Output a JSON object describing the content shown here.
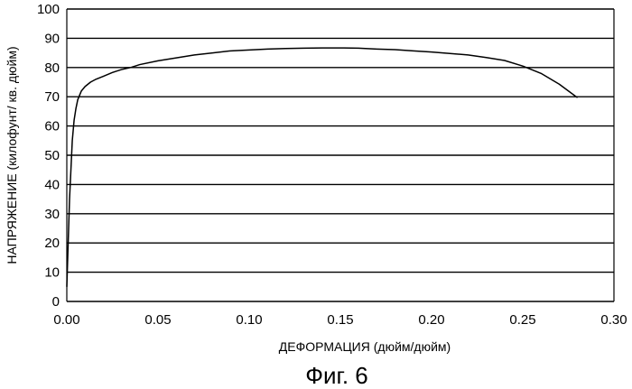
{
  "figure_label": "Фиг. 6",
  "chart_data": {
    "type": "line",
    "title": "",
    "xlabel": "ДЕФОРМАЦИЯ (дюйм/дюйм)",
    "ylabel": "НАПРЯЖЕНИЕ (килофунт/ кв. дюйм)",
    "xlim": [
      0,
      0.3
    ],
    "ylim": [
      0,
      100
    ],
    "x_ticks": [
      "0.00",
      "0.05",
      "0.10",
      "0.15",
      "0.20",
      "0.25",
      "0.30"
    ],
    "y_ticks": [
      "0",
      "10",
      "20",
      "30",
      "40",
      "50",
      "60",
      "70",
      "80",
      "90",
      "100"
    ],
    "grid": "horizontal",
    "legend": "none",
    "series": [
      {
        "color": "#000000",
        "x": [
          0.0,
          0.0015,
          0.003,
          0.004,
          0.005,
          0.006,
          0.008,
          0.01,
          0.013,
          0.016,
          0.02,
          0.025,
          0.03,
          0.035,
          0.04,
          0.05,
          0.06,
          0.07,
          0.08,
          0.09,
          0.1,
          0.11,
          0.12,
          0.13,
          0.14,
          0.15,
          0.16,
          0.17,
          0.18,
          0.19,
          0.2,
          0.21,
          0.22,
          0.23,
          0.24,
          0.25,
          0.26,
          0.27,
          0.275,
          0.28
        ],
        "y": [
          5,
          35,
          55,
          62,
          66,
          69,
          72,
          73.5,
          75,
          76,
          77,
          78.3,
          79.3,
          80,
          81,
          82.3,
          83.3,
          84.3,
          85,
          85.7,
          86,
          86.3,
          86.5,
          86.6,
          86.7,
          86.7,
          86.6,
          86.3,
          86.1,
          85.7,
          85.3,
          84.8,
          84.3,
          83.4,
          82.4,
          80.5,
          78,
          74.3,
          72,
          69.7
        ]
      }
    ]
  }
}
